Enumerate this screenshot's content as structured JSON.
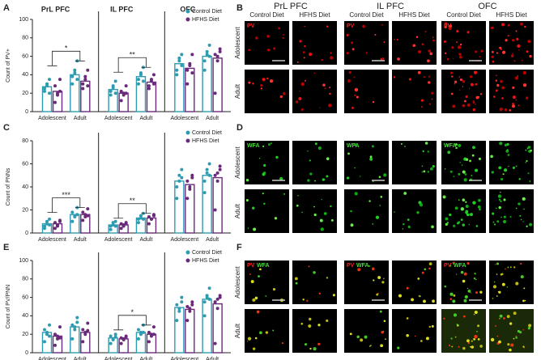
{
  "panel_letters": [
    "A",
    "B",
    "C",
    "D",
    "E",
    "F"
  ],
  "chart_data": [
    {
      "type": "bar",
      "ylabel": "Count of PV+",
      "regions": [
        "PrL PFC",
        "IL PFC",
        "OFC"
      ],
      "categories": [
        "Adolescent",
        "Adult",
        "Adolescent",
        "Adult",
        "Adolescent",
        "Adult"
      ],
      "ylim": [
        0,
        100
      ],
      "yticks": [
        0,
        20,
        40,
        60,
        80,
        100
      ],
      "significance": [
        "*",
        "**",
        null
      ],
      "series": [
        {
          "name": "Control Diet",
          "color": "#2e9cb0",
          "values": [
            27,
            40,
            24,
            38,
            52,
            60
          ],
          "points": [
            [
              22,
              28,
              35,
              25,
              30,
              20
            ],
            [
              30,
              45,
              55,
              38,
              42,
              35
            ],
            [
              18,
              26,
              33,
              22,
              28,
              20
            ],
            [
              30,
              42,
              48,
              35,
              40,
              33
            ],
            [
              40,
              55,
              62,
              45,
              58,
              50
            ],
            [
              45,
              65,
              72,
              55,
              62,
              60
            ]
          ]
        },
        {
          "name": "HFHS Diet",
          "color": "#6a2a7a",
          "values": [
            22,
            33,
            20,
            32,
            47,
            58
          ],
          "points": [
            [
              10,
              20,
              35,
              28,
              18,
              22
            ],
            [
              25,
              38,
              45,
              30,
              35,
              28
            ],
            [
              12,
              20,
              28,
              22,
              18,
              20
            ],
            [
              25,
              35,
              40,
              28,
              33,
              30
            ],
            [
              30,
              50,
              62,
              45,
              52,
              42
            ],
            [
              20,
              55,
              68,
              62,
              60,
              65
            ]
          ]
        }
      ]
    },
    {
      "type": "bar",
      "ylabel": "Count of PNNs",
      "categories": [
        "Adolescent",
        "Adult",
        "Adolescent",
        "Adult",
        "Adolescent",
        "Adult"
      ],
      "ylim": [
        0,
        80
      ],
      "yticks": [
        0,
        20,
        40,
        60,
        80
      ],
      "significance": [
        "***",
        "**",
        null
      ],
      "series": [
        {
          "name": "Control Diet",
          "color": "#2e9cb0",
          "values": [
            8,
            16,
            7,
            13,
            45,
            50
          ],
          "points": [
            [
              4,
              8,
              12,
              6,
              10,
              7
            ],
            [
              10,
              15,
              22,
              18,
              14,
              16
            ],
            [
              3,
              7,
              10,
              6,
              9,
              6
            ],
            [
              9,
              13,
              17,
              12,
              15,
              12
            ],
            [
              30,
              45,
              55,
              40,
              50,
              48
            ],
            [
              35,
              55,
              60,
              45,
              52,
              50
            ]
          ]
        },
        {
          "name": "HFHS Diet",
          "color": "#6a2a7a",
          "values": [
            8,
            16,
            7,
            13,
            42,
            48
          ],
          "points": [
            [
              4,
              7,
              11,
              9,
              6,
              10
            ],
            [
              11,
              16,
              21,
              18,
              14,
              15
            ],
            [
              4,
              7,
              9,
              8,
              6,
              8
            ],
            [
              8,
              12,
              16,
              14,
              12,
              15
            ],
            [
              30,
              40,
              48,
              45,
              38,
              50
            ],
            [
              20,
              45,
              55,
              50,
              52,
              58
            ]
          ]
        }
      ]
    },
    {
      "type": "bar",
      "ylabel": "Count of PV/PNN",
      "categories": [
        "Adolescent",
        "Adult",
        "Adolescent",
        "Adult",
        "Adolescent",
        "Adult"
      ],
      "ylim": [
        0,
        100
      ],
      "yticks": [
        0,
        20,
        40,
        60,
        80,
        100
      ],
      "significance": [
        null,
        "*",
        null
      ],
      "series": [
        {
          "name": "Control Diet",
          "color": "#2e9cb0",
          "values": [
            22,
            28,
            16,
            22,
            49,
            58
          ],
          "points": [
            [
              12,
              20,
              30,
              25,
              22,
              18
            ],
            [
              15,
              28,
              38,
              30,
              25,
              33
            ],
            [
              10,
              15,
              20,
              18,
              14,
              17
            ],
            [
              15,
              22,
              30,
              25,
              20,
              22
            ],
            [
              35,
              48,
              60,
              52,
              45,
              55
            ],
            [
              40,
              60,
              70,
              55,
              62,
              58
            ]
          ]
        },
        {
          "name": "HFHS Diet",
          "color": "#6a2a7a",
          "values": [
            18,
            22,
            15,
            20,
            47,
            53
          ],
          "points": [
            [
              8,
              15,
              28,
              20,
              18,
              16
            ],
            [
              12,
              22,
              32,
              25,
              20,
              24
            ],
            [
              10,
              14,
              18,
              16,
              15,
              17
            ],
            [
              12,
              18,
              28,
              22,
              20,
              20
            ],
            [
              35,
              45,
              55,
              50,
              48,
              52
            ],
            [
              10,
              48,
              62,
              55,
              58,
              60
            ]
          ]
        }
      ]
    }
  ],
  "images": {
    "regions": [
      "PrL PFC",
      "IL PFC",
      "OFC"
    ],
    "diets": [
      "Control Diet",
      "HFHS Diet"
    ],
    "ages": [
      "Adolescent",
      "Adult"
    ],
    "stains": [
      [
        "PV"
      ],
      [
        "WFA"
      ],
      [
        "PV",
        "WFA"
      ]
    ]
  }
}
